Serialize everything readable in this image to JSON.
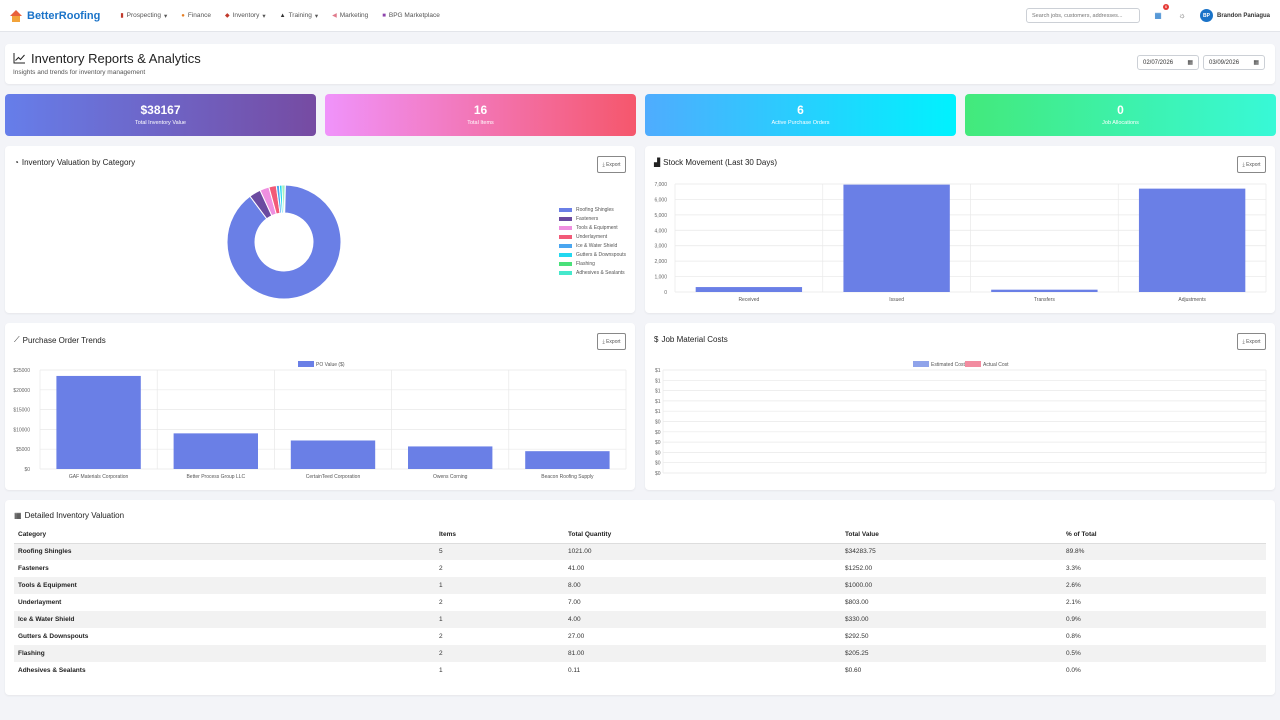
{
  "app": {
    "brand": "BetterRoofing",
    "nav": [
      {
        "label": "Prospecting",
        "dropdown": true,
        "icon": "bar-chart-icon"
      },
      {
        "label": "Finance",
        "dropdown": false,
        "icon": "dollar-icon"
      },
      {
        "label": "Inventory",
        "dropdown": true,
        "icon": "box-icon"
      },
      {
        "label": "Training",
        "dropdown": true,
        "icon": "graduation-cap-icon"
      },
      {
        "label": "Marketing",
        "dropdown": false,
        "icon": "megaphone-icon"
      },
      {
        "label": "BPG Marketplace",
        "dropdown": false,
        "icon": "store-icon"
      }
    ],
    "search_placeholder": "Search jobs, customers, addresses...",
    "notification_count": "6",
    "user": {
      "initials": "BP",
      "name": "Brandon Paniagua"
    }
  },
  "header": {
    "title": "Inventory Reports & Analytics",
    "subtitle": "Insights and trends for inventory management",
    "date_from": "02/07/2026",
    "date_to": "03/09/2026"
  },
  "stats": [
    {
      "value": "$38167",
      "label": "Total Inventory Value"
    },
    {
      "value": "16",
      "label": "Total Items"
    },
    {
      "value": "6",
      "label": "Active Purchase Orders"
    },
    {
      "value": "0",
      "label": "Job Allocations"
    }
  ],
  "export_label": "Export",
  "chart_data": [
    {
      "type": "pie",
      "title": "Inventory Valuation by Category",
      "categories": [
        "Roofing Shingles",
        "Fasteners",
        "Tools & Equipment",
        "Underlayment",
        "Ice & Water Shield",
        "Gutters & Downspouts",
        "Flashing",
        "Adhesives & Sealants"
      ],
      "values": [
        34283.75,
        1252.0,
        1000.0,
        803.0,
        330.0,
        292.5,
        205.25,
        0.6
      ],
      "colors": [
        "#6a7fe6",
        "#6b4aa0",
        "#ef8fe0",
        "#f25a78",
        "#4aa6f0",
        "#22d8f0",
        "#49e07a",
        "#45e8cc"
      ],
      "legend": "right"
    },
    {
      "type": "bar",
      "title": "Stock Movement (Last 30 Days)",
      "categories": [
        "Received",
        "Issued",
        "Transfers",
        "Adjustments"
      ],
      "values": [
        320,
        6960,
        150,
        6700
      ],
      "ylim": [
        0,
        7000
      ],
      "yticks": [
        "7,000",
        "6,000",
        "5,000",
        "4,000",
        "3,000",
        "2,000",
        "1,000",
        "0"
      ],
      "color": "#6a7fe6",
      "grid": true
    },
    {
      "type": "bar",
      "title": "Purchase Order Trends",
      "series": [
        {
          "name": "PO Value ($)",
          "values": [
            23500,
            9000,
            7200,
            5700,
            4500
          ]
        }
      ],
      "categories": [
        "GAF Materials Corporation",
        "Better Process Group LLC",
        "CertainTeed Corporation",
        "Owens Corning",
        "Beacon Roofing Supply"
      ],
      "ylim": [
        0,
        25000
      ],
      "yticks": [
        "$25000",
        "$20000",
        "$15000",
        "$10000",
        "$5000",
        "$0"
      ],
      "color": "#6a7fe6",
      "legend": "top",
      "grid": true
    },
    {
      "type": "bar",
      "title": "Job Material Costs",
      "series": [
        {
          "name": "Estimated Cost",
          "values": []
        },
        {
          "name": "Actual Cost",
          "values": []
        }
      ],
      "categories": [],
      "yticks": [
        "$1",
        "$1",
        "$1",
        "$1",
        "$1",
        "$0",
        "$0",
        "$0",
        "$0",
        "$0",
        "$0"
      ],
      "colors": [
        "#8fa3ea",
        "#f28ca0"
      ],
      "legend": "top",
      "grid": true
    }
  ],
  "table": {
    "title": "Detailed Inventory Valuation",
    "columns": [
      "Category",
      "Items",
      "Total Quantity",
      "Total Value",
      "% of Total"
    ],
    "rows": [
      [
        "Roofing Shingles",
        "5",
        "1021.00",
        "$34283.75",
        "89.8%"
      ],
      [
        "Fasteners",
        "2",
        "41.00",
        "$1252.00",
        "3.3%"
      ],
      [
        "Tools & Equipment",
        "1",
        "8.00",
        "$1000.00",
        "2.6%"
      ],
      [
        "Underlayment",
        "2",
        "7.00",
        "$803.00",
        "2.1%"
      ],
      [
        "Ice & Water Shield",
        "1",
        "4.00",
        "$330.00",
        "0.9%"
      ],
      [
        "Gutters & Downspouts",
        "2",
        "27.00",
        "$292.50",
        "0.8%"
      ],
      [
        "Flashing",
        "2",
        "81.00",
        "$205.25",
        "0.5%"
      ],
      [
        "Adhesives & Sealants",
        "1",
        "0.11",
        "$0.60",
        "0.0%"
      ]
    ]
  }
}
